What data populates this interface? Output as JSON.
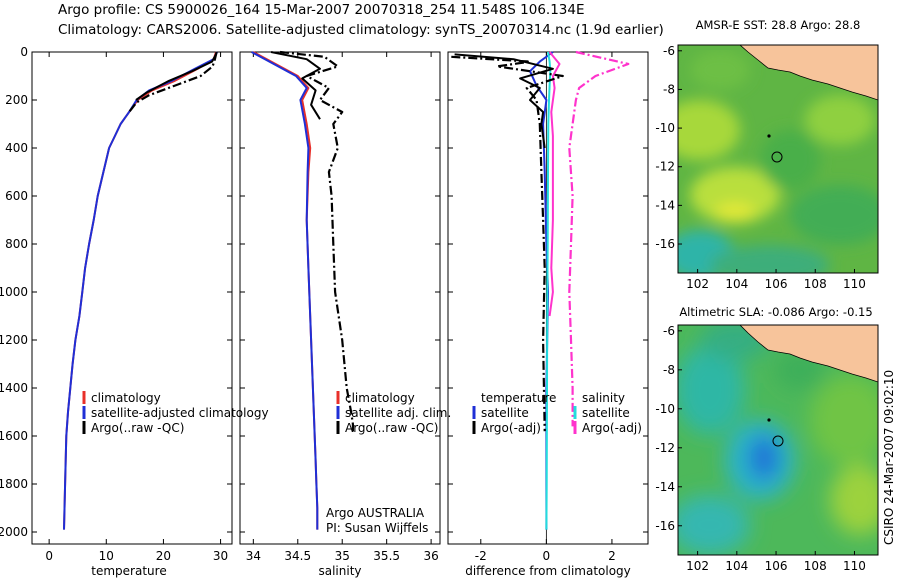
{
  "title_line1": "Argo profile: CS 5900026_164 15-Mar-2007 20070318_254 11.548S 106.134E",
  "title_line2": "Climatology: CARS2006. Satellite-adjusted climatology: synTS_20070314.nc (1.9d earlier)",
  "credit": "CSIRO 24-Mar-2007 09:02:10",
  "colors": {
    "climatology": "#e8302a",
    "satellite": "#1f2fd6",
    "argo": "#000000",
    "salinity_diff": "#ff33cc",
    "satellite_sal_diff": "#22dddd",
    "land": "#f7c49b"
  },
  "chart_data": [
    {
      "type": "line",
      "xlabel": "temperature",
      "ylabel": "",
      "xlim": [
        -3,
        32
      ],
      "ylim": [
        2050,
        0
      ],
      "xticks": [
        0,
        10,
        20,
        30
      ],
      "yticks": [
        0,
        200,
        400,
        600,
        800,
        1000,
        1200,
        1400,
        1600,
        1800,
        2000
      ],
      "legend": [
        "climatology",
        "satellite-adjusted climatology",
        "Argo(..raw -QC)"
      ],
      "series": [
        {
          "name": "climatology",
          "style": "solid",
          "color": "climatology",
          "x": [
            29.2,
            28.8,
            26,
            22,
            18,
            15.5,
            14,
            12.5,
            11.5,
            10.5,
            9.5,
            8.5,
            7.8,
            7,
            6.3,
            5.8,
            5.3,
            4.6,
            4.1,
            3.7,
            3.3,
            3.0,
            2.8,
            2.6
          ],
          "y": [
            0,
            30,
            70,
            120,
            160,
            200,
            250,
            300,
            350,
            400,
            500,
            600,
            700,
            800,
            900,
            1000,
            1100,
            1200,
            1300,
            1400,
            1500,
            1600,
            1800,
            1990
          ]
        },
        {
          "name": "satellite-adjusted climatology",
          "style": "solid",
          "color": "satellite",
          "x": [
            29.4,
            28.8,
            25.5,
            21.5,
            17.5,
            15.3,
            14,
            12.5,
            11.5,
            10.5,
            9.5,
            8.5,
            7.8,
            7,
            6.3,
            5.8,
            5.3,
            4.6,
            4.1,
            3.7,
            3.3,
            3.0,
            2.8,
            2.6
          ],
          "y": [
            0,
            30,
            70,
            120,
            160,
            200,
            250,
            300,
            350,
            400,
            500,
            600,
            700,
            800,
            900,
            1000,
            1100,
            1200,
            1300,
            1400,
            1500,
            1600,
            1800,
            1990
          ]
        },
        {
          "name": "Argo(..raw -QC)",
          "style": "dashdot",
          "color": "argo",
          "x": [
            29.3,
            29.0,
            28.6,
            26.5,
            22,
            17.5,
            15.3,
            14
          ],
          "y": [
            0,
            30,
            60,
            100,
            140,
            180,
            210,
            250
          ]
        },
        {
          "name": "Argo(..raw -QC)",
          "style": "solid",
          "color": "argo",
          "x": [
            29.2,
            28.5,
            25.0,
            21.0,
            17.0,
            15.2
          ],
          "y": [
            10,
            40,
            80,
            120,
            170,
            200
          ]
        }
      ]
    },
    {
      "type": "line",
      "xlabel": "salinity",
      "ylabel": "",
      "xlim": [
        33.85,
        36.1
      ],
      "ylim": [
        2050,
        0
      ],
      "xticks": [
        34,
        34.5,
        35,
        35.5,
        36
      ],
      "legend": [
        "climatology",
        "satellite adj. clim.",
        "Argo(..raw -QC)"
      ],
      "annotation": [
        "Argo AUSTRALIA",
        "PI: Susan Wijffels"
      ],
      "series": [
        {
          "name": "climatology",
          "style": "solid",
          "color": "climatology",
          "x": [
            34.0,
            34.1,
            34.3,
            34.5,
            34.62,
            34.55,
            34.6,
            34.64,
            34.62,
            34.6,
            34.62,
            34.64,
            34.66,
            34.68,
            34.7,
            34.71,
            34.72,
            34.72
          ],
          "y": [
            0,
            20,
            60,
            100,
            150,
            200,
            300,
            400,
            500,
            700,
            900,
            1100,
            1300,
            1500,
            1700,
            1800,
            1900,
            1990
          ]
        },
        {
          "name": "satellite adj. clim.",
          "style": "solid",
          "color": "satellite",
          "x": [
            33.98,
            34.08,
            34.28,
            34.48,
            34.6,
            34.53,
            34.58,
            34.62,
            34.61,
            34.6,
            34.62,
            34.64,
            34.66,
            34.68,
            34.7,
            34.71,
            34.72,
            34.72
          ],
          "y": [
            0,
            20,
            60,
            100,
            150,
            200,
            300,
            400,
            500,
            700,
            900,
            1100,
            1300,
            1500,
            1700,
            1800,
            1900,
            1990
          ]
        },
        {
          "name": "Argo(..raw -QC)",
          "style": "dashdot",
          "color": "argo",
          "x": [
            34.3,
            34.8,
            34.95,
            34.6,
            34.85,
            34.75,
            35.0,
            34.9,
            34.95,
            34.85,
            34.88,
            34.9,
            34.92,
            35.0,
            35.05,
            35.1,
            35.12,
            35.12
          ],
          "y": [
            0,
            20,
            60,
            100,
            150,
            200,
            250,
            300,
            400,
            500,
            600,
            800,
            1000,
            1200,
            1400,
            1500,
            1550,
            1590
          ]
        },
        {
          "name": "Argo(..raw -QC)",
          "style": "solid",
          "color": "argo",
          "x": [
            34.2,
            34.6,
            34.75,
            34.55,
            34.7,
            34.65,
            34.75
          ],
          "y": [
            0,
            30,
            70,
            110,
            160,
            220,
            280
          ]
        }
      ]
    },
    {
      "type": "line",
      "xlabel": "difference from climatology",
      "ylabel": "",
      "xlim": [
        -3,
        3.1
      ],
      "ylim": [
        2050,
        0
      ],
      "xticks": [
        -2,
        0,
        2
      ],
      "legend": [
        "temperature",
        "satellite",
        "Argo(-adj)",
        "salinity",
        "satellite",
        "Argo(-adj)"
      ],
      "series": [
        {
          "name": "satellite",
          "style": "solid",
          "color": "satellite",
          "x": [
            0.2,
            -0.2,
            -0.5,
            -0.3,
            0,
            -0.1,
            -0.05,
            0,
            0.05,
            0,
            0,
            0
          ],
          "y": [
            0,
            40,
            80,
            140,
            200,
            300,
            500,
            800,
            1000,
            1400,
            1800,
            1990
          ]
        },
        {
          "name": "satellite",
          "style": "solid",
          "color": "satellite_sal_diff",
          "x": [
            0.05,
            0.1,
            0.12,
            0.1,
            0.08,
            0.06,
            0.05,
            0.04,
            0.03,
            0.02,
            0.01,
            0.0
          ],
          "y": [
            0,
            40,
            80,
            140,
            200,
            300,
            500,
            800,
            1000,
            1400,
            1800,
            1990
          ]
        },
        {
          "name": "Argo(-adj)",
          "style": "dashdot",
          "color": "salinity_diff",
          "x": [
            0.9,
            2.5,
            1.5,
            1.0,
            0.9,
            0.8,
            0.7,
            0.8,
            0.75,
            0.7,
            0.75,
            0.8,
            0.8
          ],
          "y": [
            0,
            50,
            100,
            150,
            200,
            300,
            400,
            600,
            800,
            1000,
            1200,
            1400,
            1560
          ]
        },
        {
          "name": "Argo(-adj)",
          "style": "solid",
          "color": "salinity_diff",
          "x": [
            0.1,
            0.4,
            0.2,
            0.25,
            0.15,
            0.2,
            0.2,
            0.2,
            0.15,
            0.2,
            0.1
          ],
          "y": [
            0,
            50,
            100,
            150,
            250,
            350,
            500,
            700,
            900,
            1000,
            1100
          ]
        },
        {
          "name": "Argo(-adj)",
          "style": "dashdot",
          "color": "argo",
          "x": [
            -2.9,
            -0.5,
            -1.5,
            0.5,
            -0.6,
            -0.3,
            -0.2,
            -0.15,
            -0.1,
            -0.05,
            -0.1,
            -0.05
          ],
          "y": [
            20,
            40,
            60,
            100,
            150,
            200,
            300,
            500,
            700,
            900,
            1200,
            1580
          ]
        },
        {
          "name": "Argo(-adj)",
          "style": "solid",
          "color": "argo",
          "x": [
            -2.8,
            -1.0,
            0.2,
            -0.8,
            -0.2,
            -0.5,
            -0.1,
            -0.15,
            -0.05
          ],
          "y": [
            10,
            30,
            70,
            110,
            150,
            200,
            250,
            300,
            400
          ]
        }
      ]
    },
    {
      "type": "heatmap",
      "title": "AMSR-E SST: 28.8 Argo: 28.8",
      "xlim": [
        101,
        111.2
      ],
      "ylim": [
        -17.5,
        -5.7
      ],
      "xticks": [
        102,
        104,
        106,
        108,
        110
      ],
      "yticks": [
        -6,
        -8,
        -10,
        -12,
        -14,
        -16
      ],
      "marker": {
        "lon": 106.134,
        "lat": -11.548
      }
    },
    {
      "type": "heatmap",
      "title": "Altimetric SLA: -0.086 Argo: -0.15",
      "xlim": [
        101,
        111.2
      ],
      "ylim": [
        -17.5,
        -5.7
      ],
      "xticks": [
        102,
        104,
        106,
        108,
        110
      ],
      "yticks": [
        -6,
        -8,
        -10,
        -12,
        -14,
        -16
      ],
      "marker": {
        "lon": 106.134,
        "lat": -11.548
      }
    }
  ]
}
